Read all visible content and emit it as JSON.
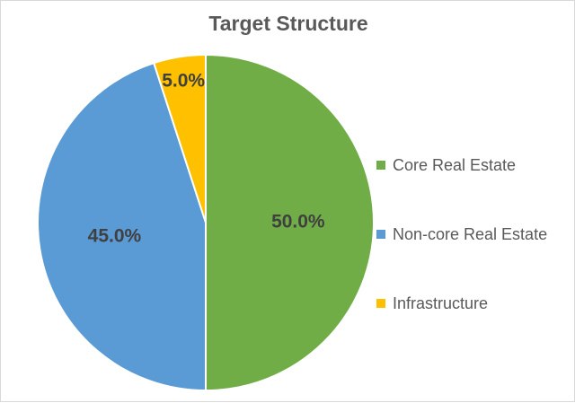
{
  "chart_data": {
    "type": "pie",
    "title": "Target Structure",
    "categories": [
      "Core Real Estate",
      "Non-core Real Estate",
      "Infrastructure"
    ],
    "values": [
      50.0,
      45.0,
      5.0
    ],
    "data_labels": [
      "50.0%",
      "45.0%",
      "5.0%"
    ],
    "colors": [
      "#70ad47",
      "#5b9bd5",
      "#ffc000"
    ],
    "legend_position": "right"
  }
}
